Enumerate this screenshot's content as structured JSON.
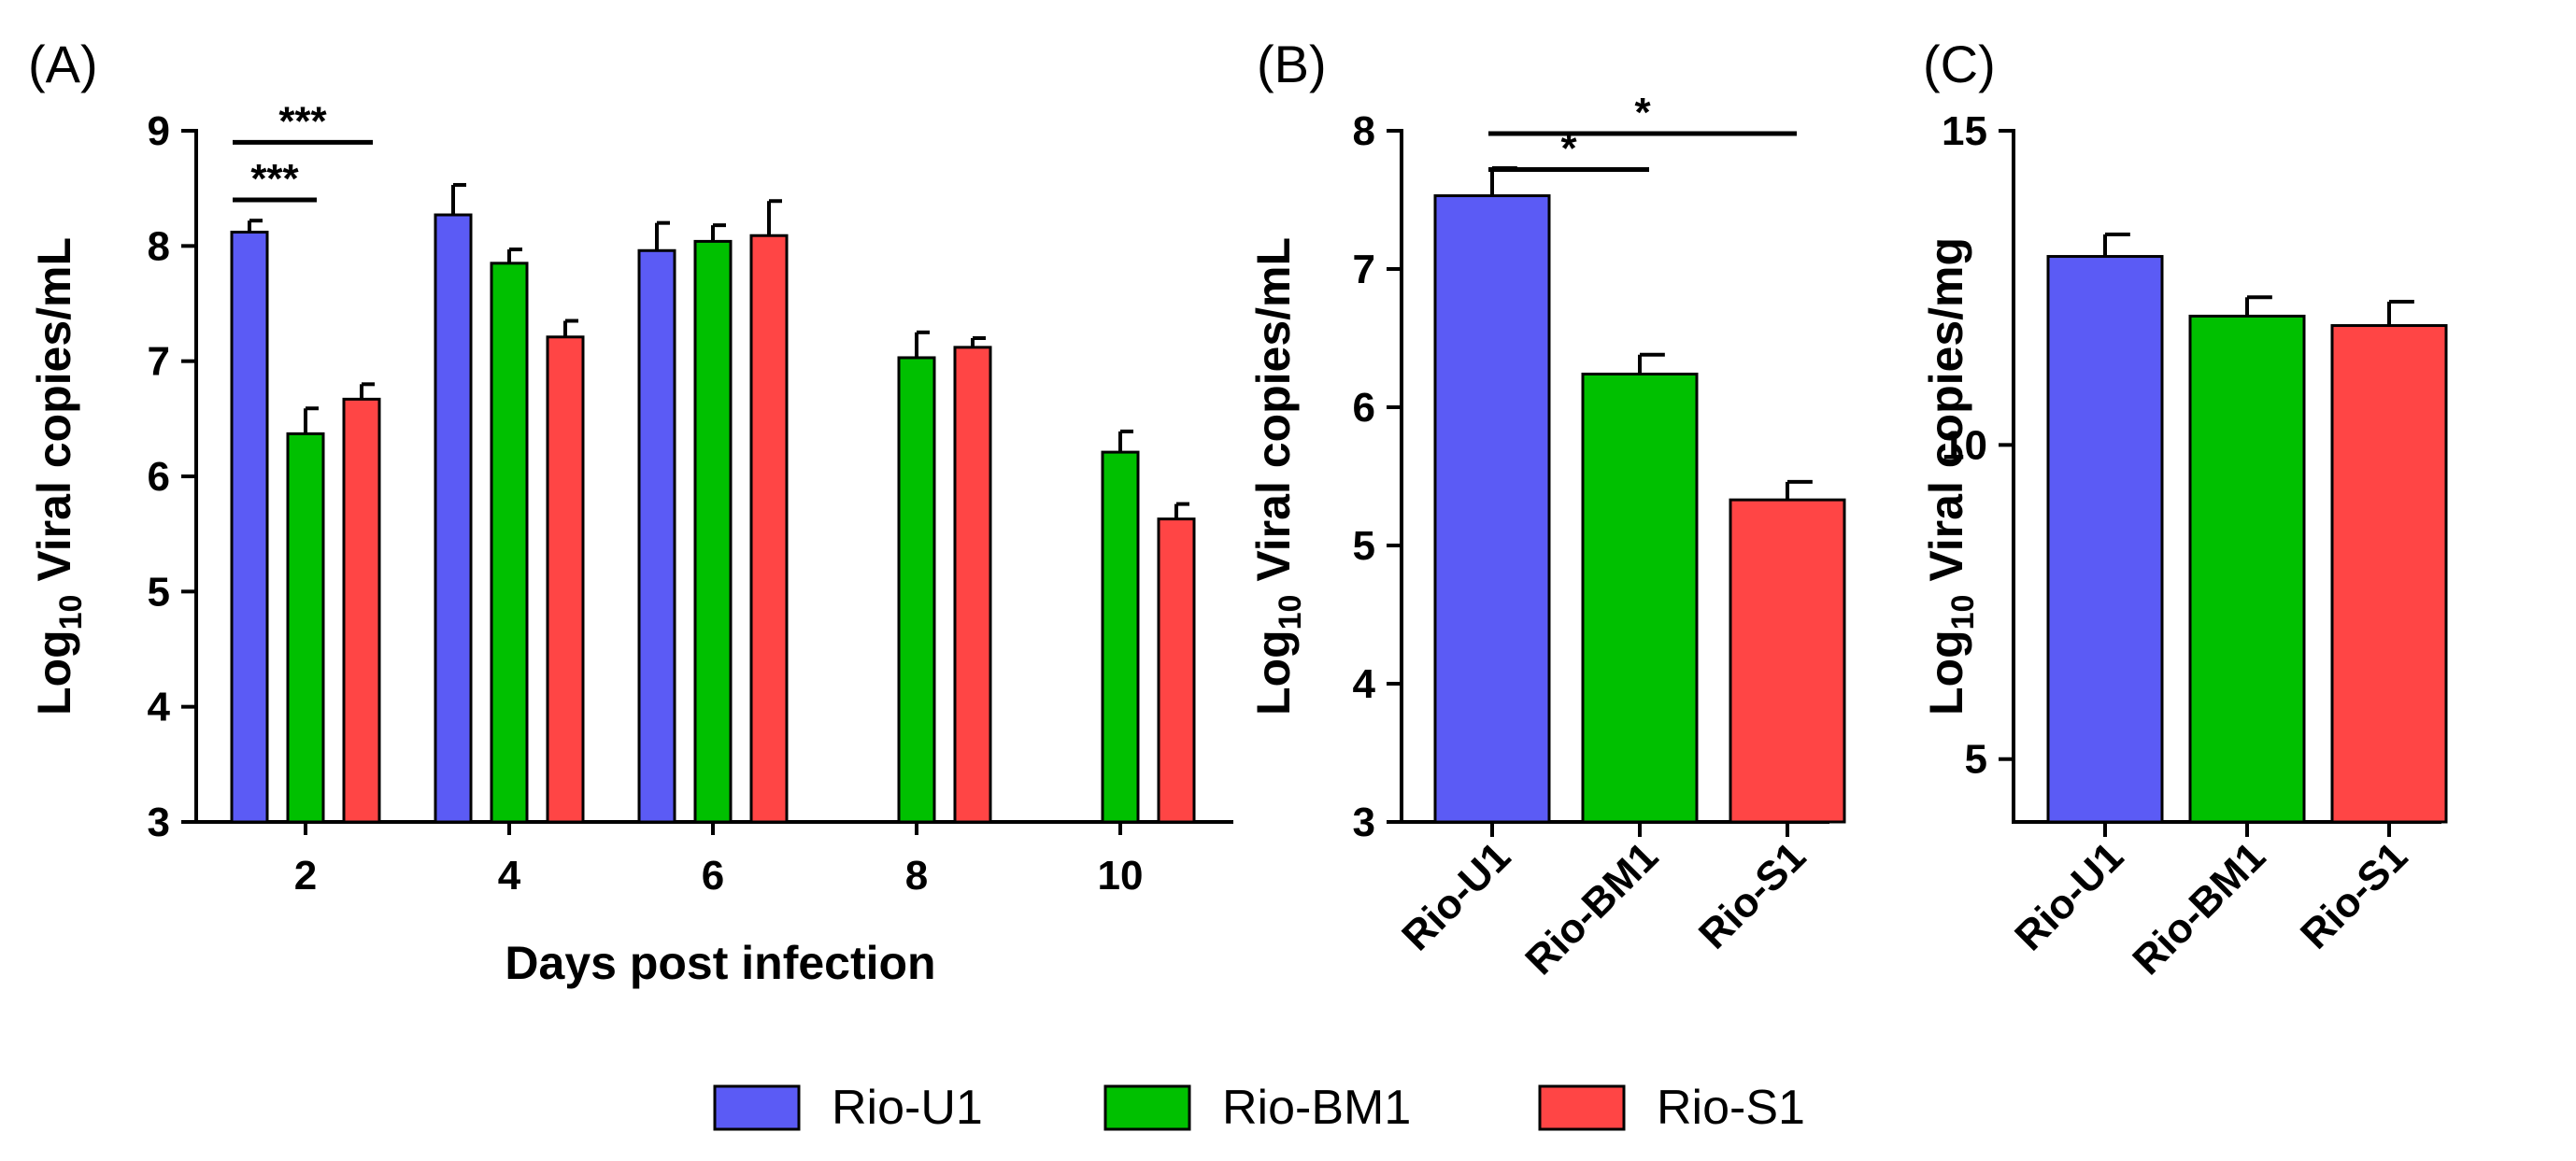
{
  "colors": {
    "Rio-U1": "#5b5bf5",
    "Rio-BM1": "#00c000",
    "Rio-S1": "#ff4545",
    "axis": "#000000"
  },
  "legend": {
    "items": [
      {
        "name": "Rio-U1",
        "color_key": "Rio-U1"
      },
      {
        "name": "Rio-BM1",
        "color_key": "Rio-BM1"
      },
      {
        "name": "Rio-S1",
        "color_key": "Rio-S1"
      }
    ]
  },
  "chart_data": [
    {
      "panel": "(A)",
      "type": "bar",
      "xlabel": "Days post infection",
      "ylabel": {
        "prefix": "Log",
        "sub": "10",
        "suffix": " Viral copies/mL"
      },
      "ylim": [
        3,
        9
      ],
      "yticks": [
        3,
        4,
        5,
        6,
        7,
        8,
        9
      ],
      "categories": [
        "2",
        "4",
        "6",
        "8",
        "10"
      ],
      "series": [
        {
          "name": "Rio-U1",
          "values": [
            8.12,
            8.27,
            7.96,
            null,
            null
          ],
          "errors": [
            0.1,
            0.26,
            0.24,
            null,
            null
          ]
        },
        {
          "name": "Rio-BM1",
          "values": [
            6.37,
            7.85,
            8.04,
            7.03,
            6.21
          ],
          "errors": [
            0.22,
            0.12,
            0.14,
            0.22,
            0.18
          ]
        },
        {
          "name": "Rio-S1",
          "values": [
            6.67,
            7.21,
            8.09,
            7.12,
            5.63
          ],
          "errors": [
            0.13,
            0.14,
            0.3,
            0.08,
            0.13
          ]
        }
      ],
      "significance": [
        {
          "label": "***",
          "category": "2",
          "from": "Rio-U1",
          "to": "Rio-S1",
          "y": 8.9
        },
        {
          "label": "***",
          "category": "2",
          "from": "Rio-U1",
          "to": "Rio-BM1",
          "y": 8.4
        }
      ]
    },
    {
      "panel": "(B)",
      "type": "bar",
      "xlabel": "",
      "ylabel": {
        "prefix": "Log",
        "sub": "10",
        "suffix": " Viral copies/mL"
      },
      "ylim": [
        3,
        8
      ],
      "yticks": [
        3,
        4,
        5,
        6,
        7,
        8
      ],
      "categories": [
        "Rio-U1",
        "Rio-BM1",
        "Rio-S1"
      ],
      "values": [
        7.53,
        6.24,
        5.33
      ],
      "errors": [
        0.2,
        0.14,
        0.13
      ],
      "significance": [
        {
          "label": "*",
          "from": "Rio-U1",
          "to": "Rio-S1",
          "y": 7.98
        },
        {
          "label": "*",
          "from": "Rio-U1",
          "to": "Rio-BM1",
          "y": 7.72
        }
      ]
    },
    {
      "panel": "(C)",
      "type": "bar",
      "xlabel": "",
      "ylabel": {
        "prefix": "Log",
        "sub": "10",
        "suffix": " Viral copies/mg"
      },
      "ylim": [
        4,
        15
      ],
      "yticks": [
        5,
        10,
        15
      ],
      "categories": [
        "Rio-U1",
        "Rio-BM1",
        "Rio-S1"
      ],
      "values": [
        13.0,
        12.05,
        11.9
      ],
      "errors": [
        0.35,
        0.3,
        0.38
      ]
    }
  ]
}
